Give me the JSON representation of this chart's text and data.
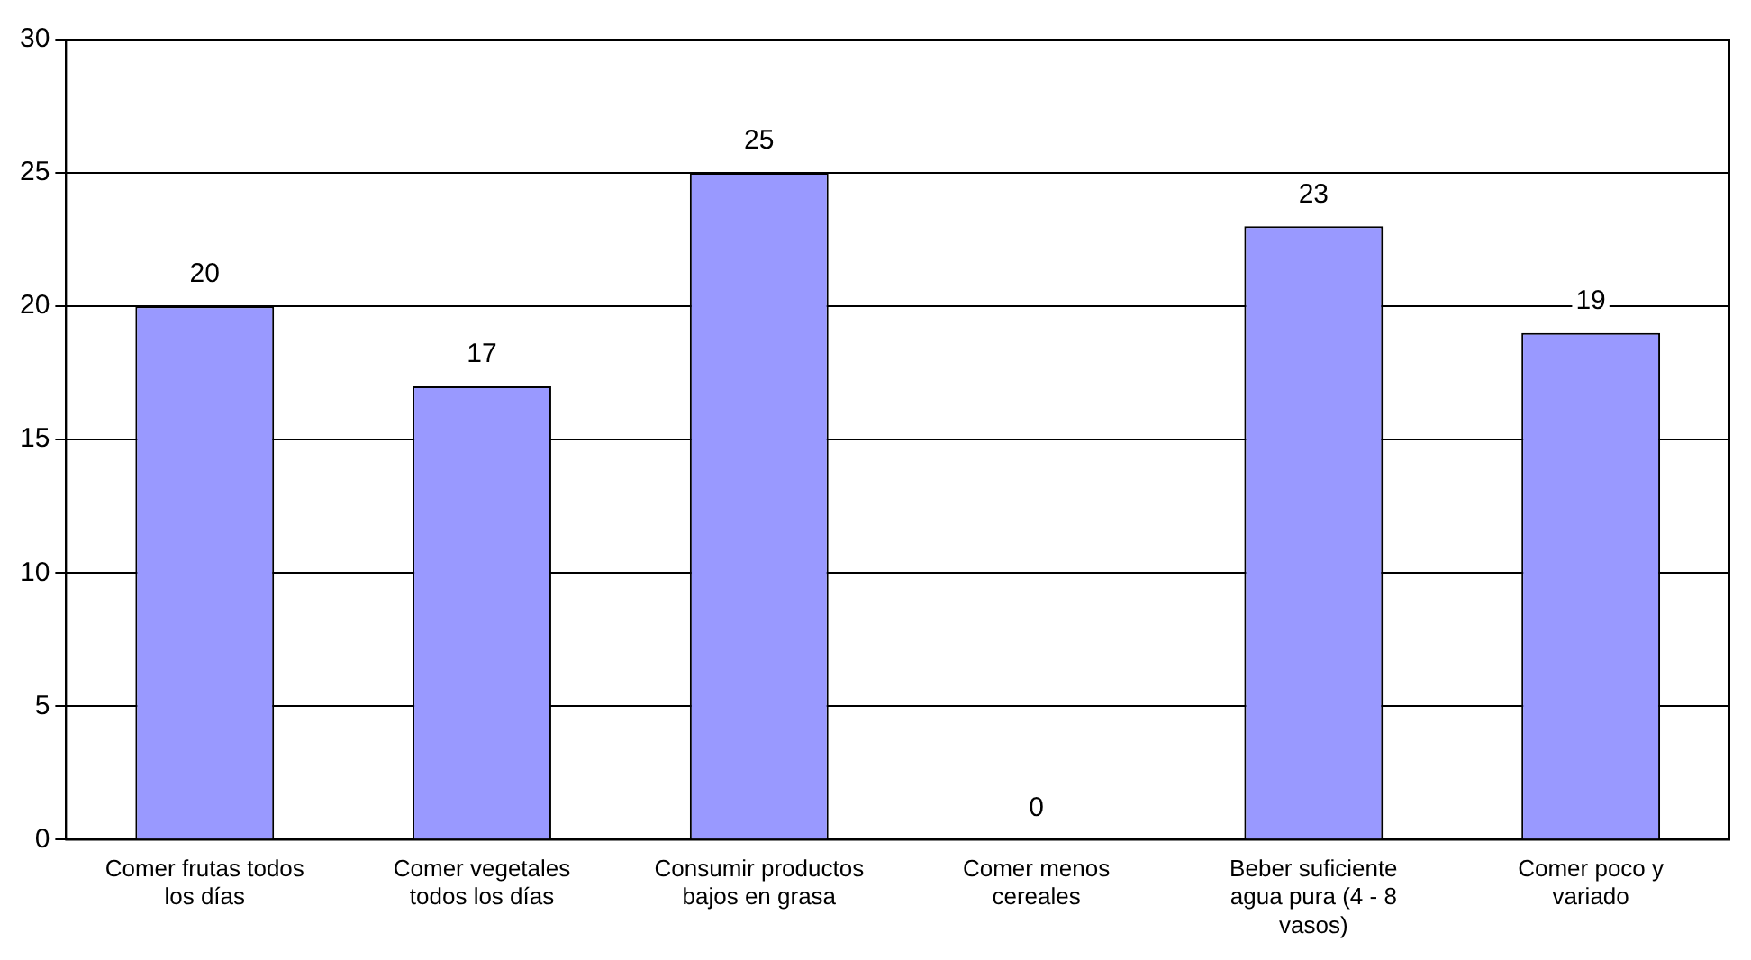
{
  "chart_data": {
    "type": "bar",
    "categories": [
      "Comer frutas todos los días",
      "Comer vegetales todos los días",
      "Consumir productos bajos en grasa",
      "Comer menos cereales",
      "Beber suficiente agua pura (4 - 8 vasos)",
      "Comer poco y variado"
    ],
    "values": [
      20,
      17,
      25,
      0,
      23,
      19
    ],
    "color": "#9999ff",
    "ylim": [
      0,
      30
    ],
    "yticks": [
      0,
      5,
      10,
      15,
      20,
      25,
      30
    ],
    "grid": "y",
    "data_labels": true,
    "legend": false
  }
}
